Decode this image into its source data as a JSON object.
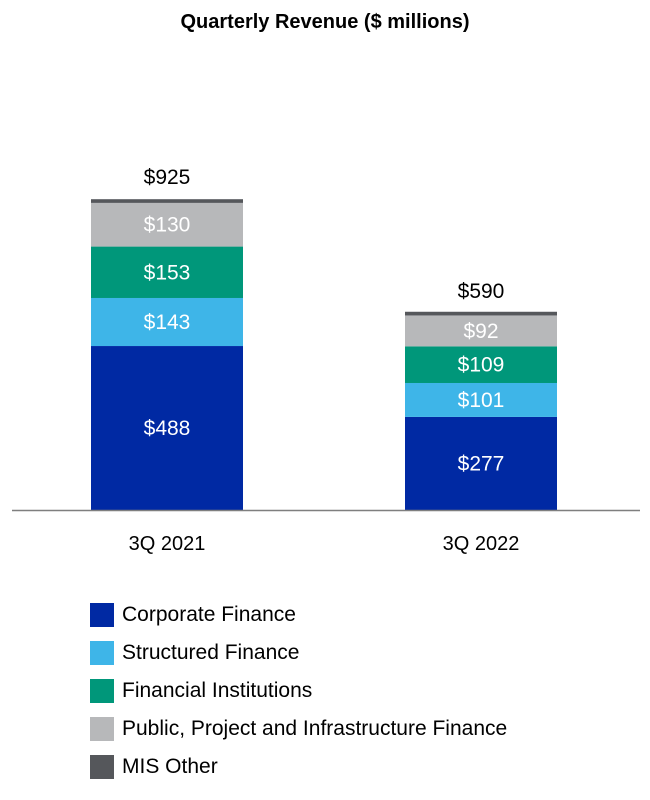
{
  "chart_data": {
    "type": "bar",
    "stacked": true,
    "title": "Quarterly Revenue ($ millions)",
    "xlabel": "",
    "ylabel": "",
    "grid": false,
    "legend_position": "bottom",
    "categories": [
      "3Q 2021",
      "3Q 2022"
    ],
    "totals": [
      925,
      590
    ],
    "total_labels": [
      "$925",
      "$590"
    ],
    "series": [
      {
        "name": "Corporate Finance",
        "values": [
          488,
          277
        ],
        "labels": [
          "$488",
          "$277"
        ],
        "color": "#0029a3"
      },
      {
        "name": "Structured Finance",
        "values": [
          143,
          101
        ],
        "labels": [
          "$143",
          "$101"
        ],
        "color": "#3eb5e8"
      },
      {
        "name": "Financial Institutions",
        "values": [
          153,
          109
        ],
        "labels": [
          "$153",
          "$109"
        ],
        "color": "#00977a"
      },
      {
        "name": "Public, Project and Infrastructure Finance",
        "values": [
          130,
          92
        ],
        "labels": [
          "$130",
          "$92"
        ],
        "color": "#b7b8ba"
      },
      {
        "name": "MIS Other",
        "values": [
          11,
          11
        ],
        "labels": [
          "",
          ""
        ],
        "color": "#55575b"
      }
    ]
  }
}
